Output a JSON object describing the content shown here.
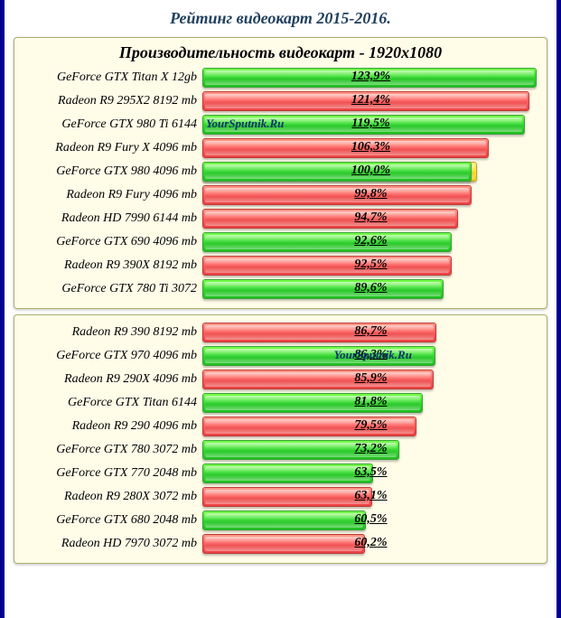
{
  "title": "Рейтинг видеокарт 2015-2016.",
  "subtitle": "Производительность видеокарт - 1920x1080",
  "colors": {
    "geforce": "green",
    "radeon": "red",
    "baseline": "yellow",
    "panel_bg": "#fffce8",
    "panel_border": "#b0b070",
    "frame_border": "#000090",
    "title_color": "#204060"
  },
  "max_percent": 125,
  "label_fontsize": 14,
  "pct_fontsize": 14,
  "title_fontsize": 18,
  "watermark_text": "YourSputnik.Ru",
  "panels": [
    {
      "show_title": true,
      "rows": [
        {
          "label": "GeForce GTX Titan X 12gb",
          "pct": "123,9%",
          "val": 123.9,
          "color": "green"
        },
        {
          "label": "Radeon R9 295X2 8192 mb",
          "pct": "121,4%",
          "val": 121.4,
          "color": "red"
        },
        {
          "label": "GeForce GTX 980 Ti 6144",
          "pct": "119,5%",
          "val": 119.5,
          "color": "green",
          "watermark_left": true
        },
        {
          "label": "Radeon R9 Fury X 4096 mb",
          "pct": "106,3%",
          "val": 106.3,
          "color": "red"
        },
        {
          "label": "GeForce GTX 980 4096 mb",
          "pct": "100,0%",
          "val": 100.0,
          "color": "green",
          "overlay": "yellow",
          "overlay_val": 100.0
        },
        {
          "label": "Radeon R9 Fury 4096 mb",
          "pct": "99,8%",
          "val": 99.8,
          "color": "red"
        },
        {
          "label": "Radeon HD 7990 6144 mb",
          "pct": "94,7%",
          "val": 94.7,
          "color": "red"
        },
        {
          "label": "GeForce GTX 690 4096 mb",
          "pct": "92,6%",
          "val": 92.6,
          "color": "green"
        },
        {
          "label": "Radeon R9 390X 8192 mb",
          "pct": "92,5%",
          "val": 92.5,
          "color": "red"
        },
        {
          "label": "GeForce GTX 780 Ti 3072",
          "pct": "89,6%",
          "val": 89.6,
          "color": "green"
        }
      ]
    },
    {
      "show_title": false,
      "rows": [
        {
          "label": "Radeon R9 390 8192 mb",
          "pct": "86,7%",
          "val": 86.7,
          "color": "red"
        },
        {
          "label": "GeForce GTX 970 4096 mb",
          "pct": "86,3%",
          "val": 86.3,
          "color": "green",
          "watermark_right": true
        },
        {
          "label": "Radeon R9 290X 4096 mb",
          "pct": "85,9%",
          "val": 85.9,
          "color": "red"
        },
        {
          "label": "GeForce GTX Titan 6144",
          "pct": "81,8%",
          "val": 81.8,
          "color": "green"
        },
        {
          "label": "Radeon R9 290 4096 mb",
          "pct": "79,5%",
          "val": 79.5,
          "color": "red"
        },
        {
          "label": "GeForce GTX 780 3072 mb",
          "pct": "73,2%",
          "val": 73.2,
          "color": "green"
        },
        {
          "label": "GeForce GTX 770 2048 mb",
          "pct": "63,5%",
          "val": 63.5,
          "color": "green"
        },
        {
          "label": "Radeon R9 280X 3072 mb",
          "pct": "63,1%",
          "val": 63.1,
          "color": "red"
        },
        {
          "label": "GeForce GTX 680 2048 mb",
          "pct": "60,5%",
          "val": 60.5,
          "color": "green"
        },
        {
          "label": "Radeon HD 7970 3072 mb",
          "pct": "60,2%",
          "val": 60.2,
          "color": "red"
        }
      ]
    }
  ]
}
